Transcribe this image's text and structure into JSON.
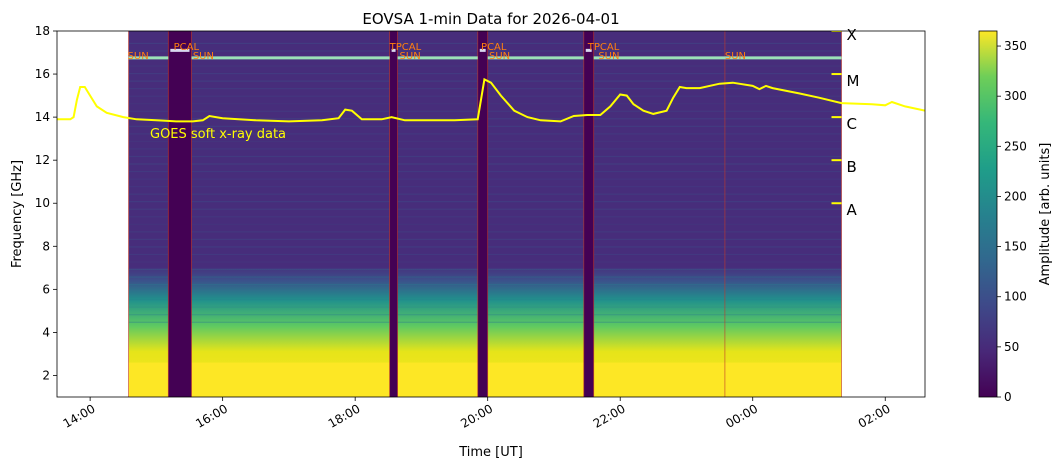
{
  "chart_data": {
    "type": "heatmap",
    "title": "EOVSA 1-min Data for 2026-04-01",
    "xlabel": "Time [UT]",
    "ylabel": "Frequency [GHz]",
    "x_unit": "hours UT",
    "xlim": [
      13.5,
      26.6
    ],
    "ylim": [
      1,
      18
    ],
    "x_ticks": [
      {
        "value": 14,
        "label": "14:00"
      },
      {
        "value": 16,
        "label": "16:00"
      },
      {
        "value": 18,
        "label": "18:00"
      },
      {
        "value": 20,
        "label": "20:00"
      },
      {
        "value": 22,
        "label": "22:00"
      },
      {
        "value": 24,
        "label": "00:00"
      },
      {
        "value": 26,
        "label": "02:00"
      }
    ],
    "y_ticks": [
      2,
      4,
      6,
      8,
      10,
      12,
      14,
      16,
      18
    ],
    "data_span": [
      14.58,
      25.34
    ],
    "gaps": [
      [
        15.18,
        15.53
      ],
      [
        18.52,
        18.64
      ],
      [
        19.85,
        20.0
      ],
      [
        21.45,
        21.6
      ]
    ],
    "colorbar": {
      "label": "Amplitude [arb. units]",
      "range": [
        0,
        365
      ],
      "ticks": [
        0,
        50,
        100,
        150,
        200,
        250,
        300,
        350
      ],
      "colormap": "viridis"
    },
    "scan_labels": [
      {
        "text": "SUN",
        "x": 14.58,
        "row": 1
      },
      {
        "text": "PCAL",
        "x": 15.26,
        "row": 2
      },
      {
        "text": "SUN",
        "x": 15.55,
        "row": 1
      },
      {
        "text": "TPCAL",
        "x": 18.52,
        "row": 2
      },
      {
        "text": "SUN",
        "x": 18.67,
        "row": 1
      },
      {
        "text": "PCAL",
        "x": 19.9,
        "row": 2
      },
      {
        "text": "SUN",
        "x": 20.02,
        "row": 1
      },
      {
        "text": "TPCAL",
        "x": 21.51,
        "row": 2
      },
      {
        "text": "SUN",
        "x": 21.67,
        "row": 1
      },
      {
        "text": "SUN",
        "x": 23.58,
        "row": 1
      }
    ],
    "scan_lines": [
      15.18,
      15.53,
      18.52,
      18.64,
      19.85,
      20.0,
      21.45,
      21.6,
      23.58
    ],
    "scan_label_color": "#ff7f0e",
    "sun_bar_color": "#9be3b8",
    "goes": {
      "label": "GOES soft x-ray data",
      "color": "#ffff00",
      "points": [
        [
          13.5,
          13.9
        ],
        [
          13.7,
          13.9
        ],
        [
          13.75,
          14.0
        ],
        [
          13.8,
          14.8
        ],
        [
          13.85,
          15.4
        ],
        [
          13.92,
          15.4
        ],
        [
          14.0,
          15.0
        ],
        [
          14.1,
          14.5
        ],
        [
          14.25,
          14.2
        ],
        [
          14.5,
          14.0
        ],
        [
          14.7,
          13.9
        ],
        [
          15.0,
          13.85
        ],
        [
          15.3,
          13.8
        ],
        [
          15.55,
          13.8
        ],
        [
          15.7,
          13.85
        ],
        [
          15.8,
          14.05
        ],
        [
          16.0,
          13.95
        ],
        [
          16.5,
          13.85
        ],
        [
          17.0,
          13.8
        ],
        [
          17.5,
          13.85
        ],
        [
          17.75,
          13.95
        ],
        [
          17.85,
          14.35
        ],
        [
          17.95,
          14.3
        ],
        [
          18.1,
          13.9
        ],
        [
          18.4,
          13.9
        ],
        [
          18.55,
          14.0
        ],
        [
          18.75,
          13.85
        ],
        [
          19.0,
          13.85
        ],
        [
          19.5,
          13.85
        ],
        [
          19.85,
          13.9
        ],
        [
          19.95,
          15.75
        ],
        [
          20.05,
          15.6
        ],
        [
          20.2,
          15.0
        ],
        [
          20.4,
          14.3
        ],
        [
          20.6,
          14.0
        ],
        [
          20.8,
          13.85
        ],
        [
          21.1,
          13.8
        ],
        [
          21.3,
          14.05
        ],
        [
          21.5,
          14.1
        ],
        [
          21.7,
          14.1
        ],
        [
          21.85,
          14.5
        ],
        [
          22.0,
          15.05
        ],
        [
          22.1,
          15.0
        ],
        [
          22.2,
          14.6
        ],
        [
          22.35,
          14.3
        ],
        [
          22.5,
          14.15
        ],
        [
          22.7,
          14.3
        ],
        [
          22.8,
          14.9
        ],
        [
          22.9,
          15.4
        ],
        [
          23.0,
          15.35
        ],
        [
          23.2,
          15.35
        ],
        [
          23.5,
          15.55
        ],
        [
          23.7,
          15.6
        ],
        [
          24.0,
          15.45
        ],
        [
          24.1,
          15.3
        ],
        [
          24.2,
          15.45
        ],
        [
          24.3,
          15.35
        ],
        [
          24.7,
          15.1
        ],
        [
          25.0,
          14.9
        ],
        [
          25.34,
          14.65
        ],
        [
          25.8,
          14.6
        ],
        [
          26.0,
          14.55
        ],
        [
          26.1,
          14.7
        ],
        [
          26.3,
          14.5
        ],
        [
          26.6,
          14.3
        ]
      ]
    },
    "goes_classes": [
      {
        "label": "A",
        "freq": 10
      },
      {
        "label": "B",
        "freq": 12
      },
      {
        "label": "C",
        "freq": 14
      },
      {
        "label": "M",
        "freq": 16
      },
      {
        "label": "X",
        "freq": 18
      }
    ]
  }
}
